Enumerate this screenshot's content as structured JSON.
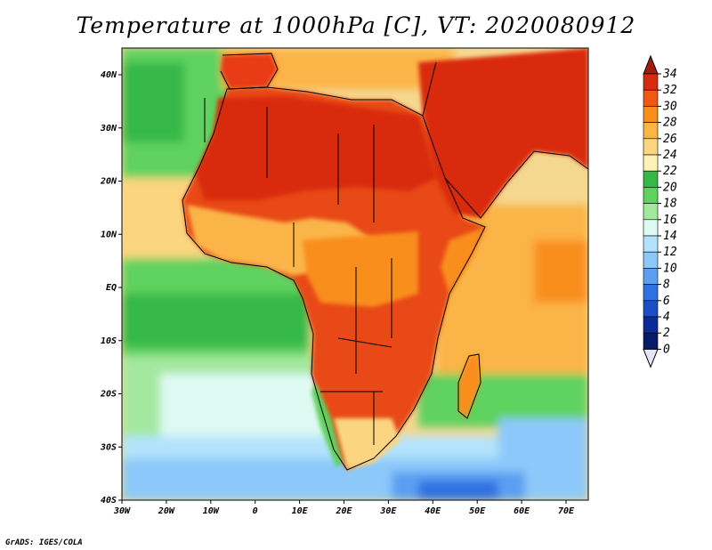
{
  "title": "Temperature at 1000hPa [C], VT: 2020080912",
  "credit": "GrADS: IGES/COLA",
  "map": {
    "lon_range": [
      -30,
      75
    ],
    "lat_range": [
      -40,
      45
    ],
    "lat_ticks": [
      "40N",
      "30N",
      "20N",
      "10N",
      "EQ",
      "10S",
      "20S",
      "30S",
      "40S"
    ],
    "lon_ticks": [
      "30W",
      "20W",
      "10W",
      "0",
      "10E",
      "20E",
      "30E",
      "40E",
      "50E",
      "60E",
      "70E"
    ],
    "land_color": "#e83a14",
    "ocean_color": "#f5e08c"
  },
  "colorbar": {
    "labels": [
      "34",
      "32",
      "30",
      "28",
      "26",
      "24",
      "22",
      "20",
      "18",
      "16",
      "14",
      "12",
      "10",
      "8",
      "6",
      "4",
      "2",
      "0"
    ],
    "colors": [
      "#a31a0c",
      "#d9290f",
      "#ee5a14",
      "#f98e1c",
      "#fbb446",
      "#fcd580",
      "#fcf2b5",
      "#35b846",
      "#5fd25e",
      "#a4e8a0",
      "#def9f2",
      "#b3e3fc",
      "#8cc9fa",
      "#5c9ff2",
      "#2f72e0",
      "#1a4ec4",
      "#0c2b97",
      "#071a6b",
      "#e2e6f8"
    ]
  }
}
